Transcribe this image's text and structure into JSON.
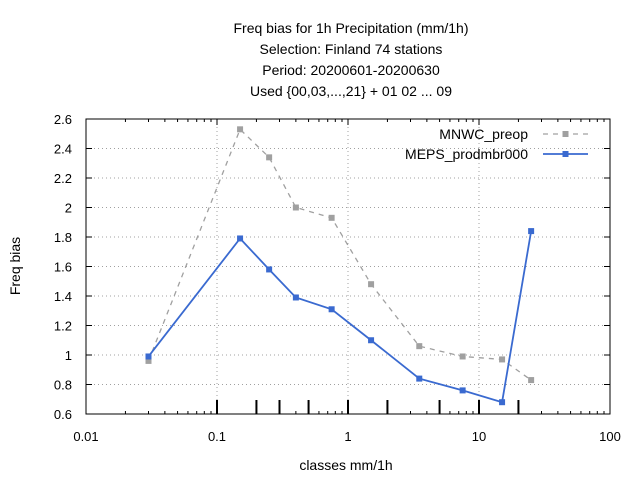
{
  "chart_data": {
    "type": "line",
    "title_lines": [
      "Freq bias  for 1h Precipitation (mm/1h)",
      "Selection: Finland     74 stations",
      "Period: 20200601-20200630",
      "Used {00,03,...,21} + 01 02 ... 09"
    ],
    "xlabel": "classes mm/1h",
    "ylabel": "Freq bias",
    "x_scale": "log",
    "xlim": [
      0.01,
      100
    ],
    "ylim": [
      0.6,
      2.6
    ],
    "x_ticks": [
      0.01,
      0.1,
      1,
      10,
      100
    ],
    "x_tick_labels": [
      "0.01",
      "0.1",
      "1",
      "10",
      "100"
    ],
    "y_ticks": [
      0.6,
      0.8,
      1,
      1.2,
      1.4,
      1.6,
      1.8,
      2,
      2.2,
      2.4,
      2.6
    ],
    "y_tick_labels": [
      "0.6",
      "0.8",
      "1",
      "1.2",
      "1.4",
      "1.6",
      "1.8",
      "2",
      "2.2",
      "2.4",
      "2.6"
    ],
    "class_limits": [
      0.1,
      0.2,
      0.3,
      0.5,
      1,
      2,
      5,
      10,
      20
    ],
    "grid": true,
    "legend_position": "top-right",
    "x": [
      0.03,
      0.15,
      0.25,
      0.4,
      0.75,
      1.5,
      3.5,
      7.5,
      15,
      25
    ],
    "series": [
      {
        "name": "MNWC_preop",
        "color": "#a0a0a0",
        "style": "dashed",
        "values": [
          0.96,
          2.53,
          2.34,
          2.0,
          1.93,
          1.48,
          1.06,
          0.99,
          0.97,
          0.83
        ]
      },
      {
        "name": "MEPS_prodmbr000",
        "color": "#3a6ad0",
        "style": "solid",
        "values": [
          0.99,
          1.79,
          1.58,
          1.39,
          1.31,
          1.1,
          0.84,
          0.76,
          0.68,
          1.84
        ]
      }
    ]
  }
}
